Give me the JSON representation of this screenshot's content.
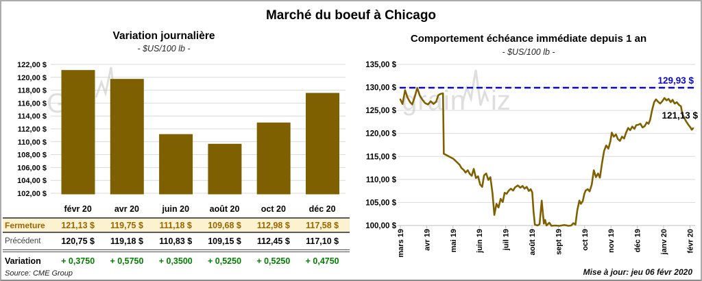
{
  "page": {
    "title": "Marché du boeuf à Chicago"
  },
  "footer": {
    "source": "Source: CME Group",
    "updated": "Mise à jour: jeu 06 févr 2020"
  },
  "watermark": {
    "text_left": "Gra",
    "text_mid": "grain",
    "text_end": "iz",
    "color": "#C4C4C4"
  },
  "colors": {
    "gold": "#7F6000",
    "blue": "#0909CE",
    "green": "#008000",
    "fermeture_bg": "#FCF2CF",
    "fermeture_text": "#9C6500",
    "grid": "#D9D9D9",
    "axis": "#BFBFBF"
  },
  "chart_data": [
    {
      "type": "bar",
      "title": "Variation journalière",
      "subtitle": "- $US/100 lb -",
      "categories": [
        "févr 20",
        "avr 20",
        "juin 20",
        "août 20",
        "oct 20",
        "déc 20"
      ],
      "values": [
        121.13,
        119.75,
        111.18,
        109.68,
        112.98,
        117.58
      ],
      "ylim": [
        102,
        122
      ],
      "ytick_step": 2,
      "ytick_labels": [
        "122,00 $",
        "120,00 $",
        "118,00 $",
        "116,00 $",
        "114,00 $",
        "112,00 $",
        "110,00 $",
        "108,00 $",
        "106,00 $",
        "104,00 $",
        "102,00 $"
      ],
      "bar_color": "#7F6000",
      "grid": true,
      "legend": "none"
    },
    {
      "type": "line",
      "title": "Comportement échéance immédiate depuis 1 an",
      "subtitle": "- $US/100 lb -",
      "x_tick_labels": [
        "mars 19",
        "avr 19",
        "mai 19",
        "juin 19",
        "juil 19",
        "août 19",
        "sept 19",
        "oct 19",
        "nov 19",
        "déc 19",
        "janv 20",
        "févr 20"
      ],
      "ylim": [
        100,
        135
      ],
      "ytick_step": 5,
      "ytick_labels": [
        "135,00 $",
        "130,00 $",
        "125,00 $",
        "120,00 $",
        "115,00 $",
        "110,00 $",
        "105,00 $",
        "100,00 $"
      ],
      "line_color": "#7F6000",
      "grid": true,
      "reference_line": {
        "value": 129.93,
        "label": "129,93 $",
        "color": "#0909CE",
        "style": "dashed"
      },
      "end_label": "121,13 $",
      "end_value": 121.13,
      "points": [
        [
          0,
          127.4
        ],
        [
          0.08,
          126.4
        ],
        [
          0.18,
          129.4
        ],
        [
          0.27,
          127.8
        ],
        [
          0.37,
          126.8
        ],
        [
          0.45,
          126.3
        ],
        [
          0.55,
          128
        ],
        [
          0.64,
          129.9
        ],
        [
          0.74,
          128.2
        ],
        [
          0.84,
          127.3
        ],
        [
          0.94,
          126.6
        ],
        [
          1.05,
          126.3
        ],
        [
          1.15,
          127
        ],
        [
          1.26,
          126.4
        ],
        [
          1.36,
          126.9
        ],
        [
          1.44,
          128.3
        ],
        [
          1.52,
          128.6
        ],
        [
          1.62,
          128.7
        ],
        [
          1.65,
          115.6
        ],
        [
          1.75,
          115.3
        ],
        [
          1.88,
          114.9
        ],
        [
          2.01,
          114.5
        ],
        [
          2.14,
          113.8
        ],
        [
          2.25,
          113.2
        ],
        [
          2.32,
          112.5
        ],
        [
          2.4,
          112.1
        ],
        [
          2.48,
          111.5
        ],
        [
          2.56,
          112
        ],
        [
          2.64,
          111.2
        ],
        [
          2.71,
          110.8
        ],
        [
          2.79,
          112.3
        ],
        [
          2.87,
          110.3
        ],
        [
          2.95,
          110.7
        ],
        [
          3.03,
          108.9
        ],
        [
          3.11,
          108.4
        ],
        [
          3.18,
          110.9
        ],
        [
          3.26,
          111.3
        ],
        [
          3.34,
          109.9
        ],
        [
          3.42,
          110.5
        ],
        [
          3.5,
          107
        ],
        [
          3.57,
          102.3
        ],
        [
          3.65,
          104.7
        ],
        [
          3.73,
          103.9
        ],
        [
          3.81,
          105.8
        ],
        [
          3.89,
          105.1
        ],
        [
          3.96,
          107.1
        ],
        [
          4.04,
          106.9
        ],
        [
          4.12,
          107.6
        ],
        [
          4.2,
          108
        ],
        [
          4.28,
          107.6
        ],
        [
          4.36,
          108.3
        ],
        [
          4.46,
          108.7
        ],
        [
          4.56,
          108.2
        ],
        [
          4.64,
          108.6
        ],
        [
          4.72,
          108
        ],
        [
          4.8,
          108.4
        ],
        [
          4.88,
          107.5
        ],
        [
          4.95,
          107.9
        ],
        [
          5.01,
          107.2
        ],
        [
          5.06,
          103
        ],
        [
          5.11,
          100.2
        ],
        [
          5.21,
          100
        ],
        [
          5.29,
          100.3
        ],
        [
          5.37,
          105.4
        ],
        [
          5.45,
          100.4
        ],
        [
          5.5,
          101.2
        ],
        [
          5.55,
          100
        ],
        [
          5.66,
          100.6
        ],
        [
          5.74,
          99.9
        ],
        [
          5.87,
          100
        ],
        [
          6.05,
          99.9
        ],
        [
          6.23,
          100.1
        ],
        [
          6.39,
          99.9
        ],
        [
          6.49,
          100
        ],
        [
          6.57,
          100.5
        ],
        [
          6.65,
          100.2
        ],
        [
          6.72,
          103.2
        ],
        [
          6.8,
          105.4
        ],
        [
          6.86,
          104.7
        ],
        [
          6.93,
          105.3
        ],
        [
          6.99,
          106.9
        ],
        [
          7.04,
          107.6
        ],
        [
          7.12,
          107.9
        ],
        [
          7.19,
          107.4
        ],
        [
          7.27,
          108.9
        ],
        [
          7.35,
          112
        ],
        [
          7.43,
          110.5
        ],
        [
          7.51,
          111.3
        ],
        [
          7.58,
          110.4
        ],
        [
          7.66,
          113.5
        ],
        [
          7.74,
          116.2
        ],
        [
          7.82,
          117.4
        ],
        [
          7.9,
          116.7
        ],
        [
          7.98,
          118.3
        ],
        [
          8.03,
          120.2
        ],
        [
          8.11,
          119.3
        ],
        [
          8.19,
          119.8
        ],
        [
          8.26,
          118.8
        ],
        [
          8.34,
          118.4
        ],
        [
          8.42,
          119.3
        ],
        [
          8.5,
          118.9
        ],
        [
          8.57,
          120.1
        ],
        [
          8.65,
          121.2
        ],
        [
          8.73,
          120.7
        ],
        [
          8.81,
          121.5
        ],
        [
          8.89,
          121
        ],
        [
          8.96,
          121.8
        ],
        [
          9.04,
          121.9
        ],
        [
          9.12,
          122.1
        ],
        [
          9.2,
          121.3
        ],
        [
          9.28,
          121.6
        ],
        [
          9.36,
          122.4
        ],
        [
          9.43,
          122.1
        ],
        [
          9.49,
          123
        ],
        [
          9.56,
          125
        ],
        [
          9.64,
          126.8
        ],
        [
          9.71,
          127.4
        ],
        [
          9.79,
          126.9
        ],
        [
          9.87,
          126.5
        ],
        [
          9.95,
          127
        ],
        [
          10.03,
          127.7
        ],
        [
          10.11,
          127.2
        ],
        [
          10.19,
          127.5
        ],
        [
          10.27,
          126.8
        ],
        [
          10.34,
          127.3
        ],
        [
          10.42,
          126.5
        ],
        [
          10.5,
          126.8
        ],
        [
          10.58,
          126.2
        ],
        [
          10.66,
          125.9
        ],
        [
          10.71,
          124.2
        ],
        [
          10.79,
          123.3
        ],
        [
          10.86,
          122.6
        ],
        [
          10.94,
          121.9
        ],
        [
          11.02,
          121.3
        ],
        [
          11.07,
          120.8
        ],
        [
          11.12,
          121.13
        ]
      ]
    }
  ],
  "table": {
    "columns": [
      "févr 20",
      "avr 20",
      "juin 20",
      "août 20",
      "oct 20",
      "déc 20"
    ],
    "rows": [
      {
        "label": "Fermeture",
        "style": "fermeture",
        "values": [
          "121,13 $",
          "119,75 $",
          "111,18 $",
          "109,68 $",
          "112,98 $",
          "117,58 $"
        ]
      },
      {
        "label": "Précédent",
        "style": "precedent",
        "values": [
          "120,75 $",
          "119,18 $",
          "110,83 $",
          "109,15 $",
          "112,45 $",
          "117,10 $"
        ]
      },
      {
        "label": "Variation",
        "style": "variation",
        "values": [
          "+ 0,3750",
          "+ 0,5750",
          "+ 0,3500",
          "+ 0,5250",
          "+ 0,5250",
          "+ 0,4750"
        ]
      }
    ]
  }
}
